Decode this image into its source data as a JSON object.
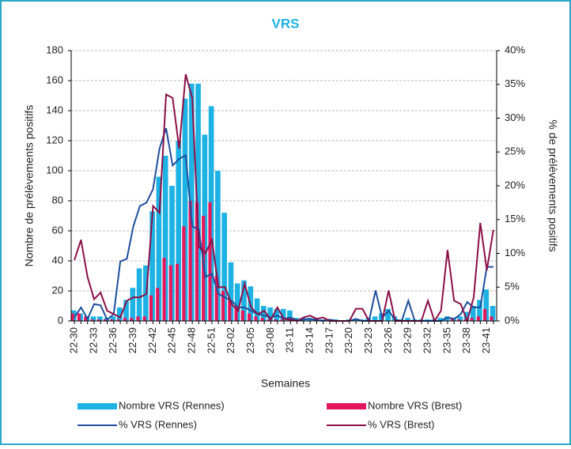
{
  "chart_data": {
    "type": "bar",
    "title": "VRS",
    "x_label": "Semaines",
    "y_label": "Nombre de prélèvements positifs",
    "y2_label": "% de prélèvements positifs",
    "categories": [
      "22-30",
      null,
      null,
      "22-33",
      null,
      null,
      "22-36",
      null,
      null,
      "22-39",
      null,
      null,
      "22-42",
      null,
      null,
      "22-45",
      null,
      null,
      "22-48",
      null,
      null,
      "22-51",
      null,
      null,
      "23-02",
      null,
      null,
      "23-05",
      null,
      null,
      "23-08",
      null,
      null,
      "23-11",
      null,
      null,
      "23-14",
      null,
      null,
      "23-17",
      null,
      null,
      "23-20",
      null,
      null,
      "23-23",
      null,
      null,
      "23-26",
      null,
      null,
      "23-29",
      null,
      null,
      "23-32",
      null,
      null,
      "23-35",
      null,
      null,
      "23-38",
      null,
      null,
      "23-41",
      null
    ],
    "ylim": [
      0,
      180
    ],
    "yticks": [
      0,
      20,
      40,
      60,
      80,
      100,
      120,
      140,
      160,
      180
    ],
    "grid": true,
    "y2lim": [
      0,
      40
    ],
    "y2ticks": [
      {
        "value": 0,
        "label": "0%"
      },
      {
        "value": 5,
        "label": "5%"
      },
      {
        "value": 10,
        "label": "10%"
      },
      {
        "value": 15,
        "label": "15%"
      },
      {
        "value": 20,
        "label": "20%"
      },
      {
        "value": 25,
        "label": "25%"
      },
      {
        "value": 30,
        "label": "30%"
      },
      {
        "value": 35,
        "label": "35%"
      },
      {
        "value": 40,
        "label": "40%"
      }
    ],
    "series": [
      {
        "name": "Nombre VRS (Rennes)",
        "type": "bar",
        "color": "#1cb2e3",
        "values": [
          7,
          5,
          3,
          3,
          3,
          2,
          3,
          9,
          14,
          22,
          35,
          37,
          73,
          96,
          110,
          90,
          120,
          148,
          158,
          158,
          124,
          143,
          100,
          72,
          39,
          25,
          27,
          23,
          15,
          10,
          9,
          8,
          8,
          7,
          2,
          2,
          2,
          2,
          1,
          1,
          1,
          0,
          1,
          1,
          1,
          2,
          3,
          5,
          8,
          3,
          1,
          2,
          1,
          1,
          1,
          1,
          2,
          3,
          2,
          3,
          6,
          10,
          14,
          21,
          10
        ]
      },
      {
        "name": "Nombre VRS (Brest)",
        "type": "bar",
        "color": "#e4175c",
        "values": [
          5,
          5,
          3,
          1,
          1,
          1,
          1,
          1,
          2,
          2,
          3,
          3,
          17,
          22,
          42,
          37,
          38,
          63,
          80,
          79,
          70,
          79,
          30,
          20,
          14,
          10,
          7,
          5,
          3,
          2,
          1,
          1,
          1,
          1,
          0,
          0,
          0,
          0,
          0,
          0,
          0,
          0,
          0,
          0,
          0,
          0,
          0,
          0,
          0,
          0,
          0,
          0,
          0,
          0,
          0,
          0,
          0,
          0,
          2,
          1,
          1,
          2,
          3,
          8,
          3
        ]
      },
      {
        "name": "% VRS (Rennes)",
        "type": "line",
        "axis": "y2",
        "color": "#1f4e9c",
        "values": [
          0.5,
          2,
          0.3,
          2.5,
          2.3,
          0.2,
          1,
          8.8,
          9.2,
          14,
          17,
          17.5,
          19.5,
          25.5,
          28.5,
          23,
          24,
          24.5,
          14,
          13.5,
          6.5,
          7,
          4,
          3.5,
          3,
          2,
          2,
          1.5,
          1,
          0.8,
          0.5,
          0.8,
          0.3,
          0.5,
          0.1,
          0.2,
          0.3,
          0.1,
          0,
          0.2,
          0,
          0,
          0,
          0.3,
          0,
          0,
          4.5,
          0.5,
          1.5,
          0.2,
          0,
          3,
          0,
          0,
          0,
          0,
          0,
          0.5,
          0.3,
          1,
          2.8,
          2,
          2,
          8,
          8
        ]
      },
      {
        "name": "% VRS (Brest)",
        "type": "line",
        "axis": "y2",
        "color": "#8b1048",
        "values": [
          9,
          12,
          6.5,
          3.2,
          4.2,
          1.5,
          1,
          0.5,
          3,
          3.5,
          3.5,
          4,
          17,
          16,
          33.5,
          33,
          25.5,
          36.5,
          33,
          11,
          10,
          12,
          5,
          5,
          2.5,
          1.5,
          5.5,
          2,
          1,
          1.5,
          0.2,
          2,
          0.3,
          0.2,
          0,
          0.5,
          0.8,
          0.3,
          0.5,
          0,
          0,
          0,
          0,
          1.8,
          1.8,
          0,
          0,
          0,
          4.5,
          0,
          0,
          0,
          0,
          0,
          3,
          0,
          1.5,
          10.5,
          3,
          2.5,
          0,
          3.5,
          14.5,
          7.5,
          13.5
        ]
      }
    ]
  }
}
